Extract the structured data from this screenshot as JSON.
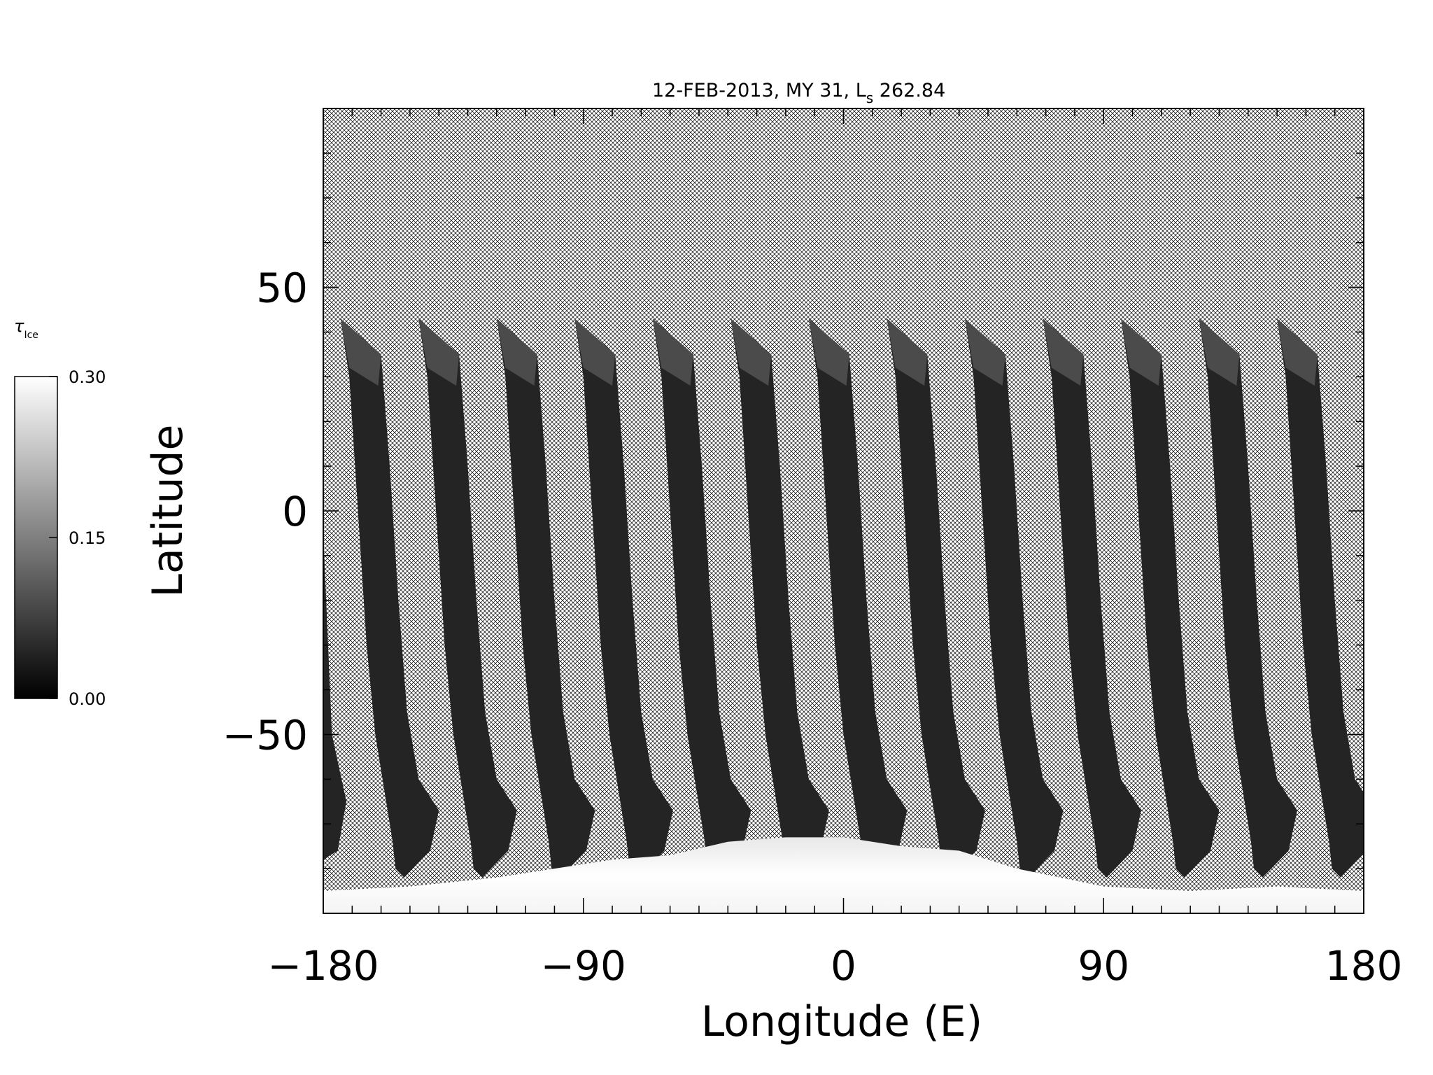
{
  "chart_data": {
    "type": "heatmap",
    "title": "12-FEB-2013, MY 31,  L",
    "title_subscript": "s",
    "title_suffix": " 262.84",
    "xlabel": "Longitude (E)",
    "ylabel": "Latitude",
    "xlim": [
      -180,
      180
    ],
    "ylim": [
      -90,
      90
    ],
    "x_ticks": [
      -180,
      -90,
      0,
      90,
      180
    ],
    "x_tick_labels": [
      "−180",
      "−90",
      "0",
      "90",
      "180"
    ],
    "y_ticks": [
      -50,
      0,
      50
    ],
    "y_tick_labels": [
      "−50",
      "0",
      "50"
    ],
    "x_minor_step": 10,
    "y_minor_step": 10,
    "no_data_pattern": "crosshatch",
    "colorbar": {
      "label": "τ",
      "label_subscript": "Ice",
      "range": [
        0.0,
        0.3
      ],
      "ticks": [
        0.0,
        0.15,
        0.3
      ],
      "tick_labels": [
        "0.00",
        "0.15",
        "0.30"
      ],
      "colormap": "grayscale",
      "low_color": "#000000",
      "high_color": "#ffffff"
    },
    "swath_value_typical": 0.02,
    "polar_cap_value": 0.3,
    "swaths": [
      {
        "lon_north": -174,
        "lat_north": 43
      },
      {
        "lon_north": -147,
        "lat_north": 43
      },
      {
        "lon_north": -120,
        "lat_north": 43
      },
      {
        "lon_north": -93,
        "lat_north": 43
      },
      {
        "lon_north": -66,
        "lat_north": 43
      },
      {
        "lon_north": -39,
        "lat_north": 43
      },
      {
        "lon_north": -12,
        "lat_north": 43
      },
      {
        "lon_north": 15,
        "lat_north": 43
      },
      {
        "lon_north": 42,
        "lat_north": 43
      },
      {
        "lon_north": 69,
        "lat_north": 43
      },
      {
        "lon_north": 96,
        "lat_north": 43
      },
      {
        "lon_north": 123,
        "lat_north": 43
      },
      {
        "lon_north": 150,
        "lat_north": 43
      }
    ]
  }
}
